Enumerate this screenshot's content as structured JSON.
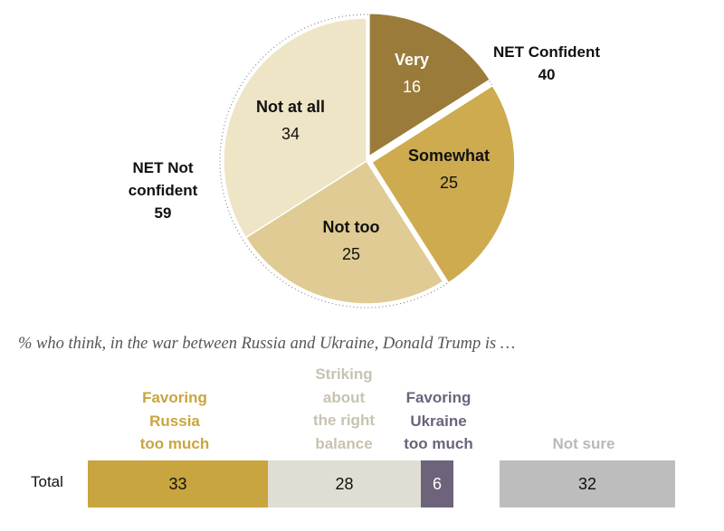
{
  "chart_data": [
    {
      "type": "pie",
      "slices": [
        {
          "label": "Very",
          "value": 16,
          "color": "#9A7B3A",
          "text_color": "#ffffff"
        },
        {
          "label": "Somewhat",
          "value": 25,
          "color": "#CDAB4E",
          "text_color": "#111111"
        },
        {
          "label": "Not too",
          "value": 25,
          "color": "#DFCB93",
          "text_color": "#111111"
        },
        {
          "label": "Not at all",
          "value": 34,
          "color": "#EEE4C6",
          "text_color": "#111111"
        }
      ],
      "net_confident": {
        "label": "NET Confident",
        "value": "40"
      },
      "net_not_confident": {
        "label_line1": "NET Not",
        "label_line2": "confident",
        "value": "59"
      }
    },
    {
      "type": "bar",
      "orientation": "horizontal-stacked",
      "title": "% who think, in the war between Russia and Ukraine, Donald Trump is …",
      "row_label": "Total",
      "series": [
        {
          "name": "Favoring Russia too much",
          "name_lines": [
            "Favoring",
            "Russia",
            "too much"
          ],
          "value": 33,
          "color": "#C9A53F",
          "text_color": "#111111"
        },
        {
          "name": "Striking about the right balance",
          "name_lines": [
            "Striking",
            "about",
            "the right",
            "balance"
          ],
          "value": 28,
          "color": "#E0DDD2",
          "text_color": "#111111"
        },
        {
          "name": "Favoring Ukraine too much",
          "name_lines": [
            "Favoring",
            "Ukraine",
            "too much"
          ],
          "value": 6,
          "color": "#6D637B",
          "text_color": "#ffffff"
        },
        {
          "name": "Not sure",
          "name_lines": [
            "Not sure"
          ],
          "value": 32,
          "color": "#BDBDBD",
          "text_color": "#111111"
        }
      ]
    }
  ]
}
